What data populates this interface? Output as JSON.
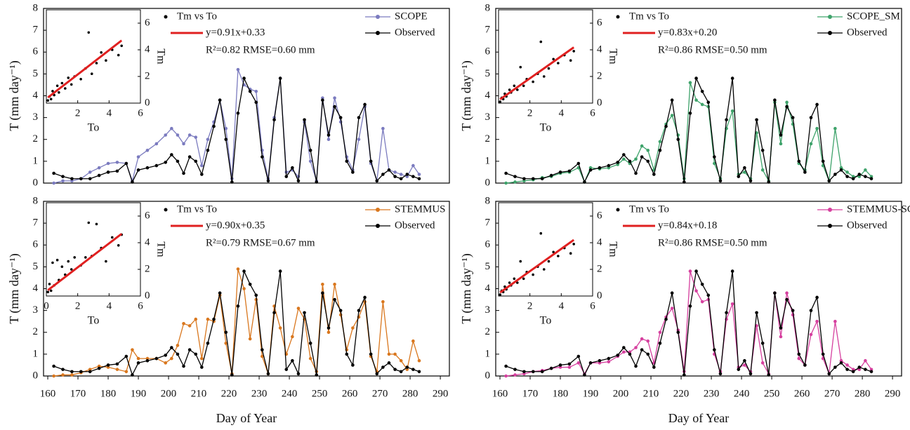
{
  "chart_data": [
    {
      "type": "line",
      "ylabel": "T (mm day⁻¹)",
      "xlim": [
        158.6,
        293
      ],
      "ylim": [
        0,
        8
      ],
      "yticks": [
        0,
        1,
        2,
        3,
        4,
        5,
        6,
        7,
        8
      ],
      "legend": "upper right",
      "x": [
        162,
        165,
        168,
        171,
        174,
        177,
        180,
        183,
        186,
        188,
        190,
        193,
        196,
        199,
        201,
        203,
        205,
        207,
        209,
        211,
        213,
        215,
        217,
        219,
        221,
        223,
        225,
        227,
        229,
        231,
        233,
        235,
        237,
        239,
        241,
        243,
        245,
        247,
        249,
        251,
        253,
        255,
        257,
        259,
        261,
        263,
        265,
        267,
        269,
        271,
        273,
        275,
        277,
        279,
        281,
        283
      ],
      "series": [
        {
          "name": "SCOPE",
          "color": "#7b7bbf",
          "values": [
            0,
            0.1,
            0.1,
            0.2,
            0.5,
            0.7,
            0.9,
            0.95,
            0.9,
            0.1,
            1.2,
            1.5,
            1.8,
            2.2,
            2.5,
            2.2,
            1.8,
            2.2,
            2.1,
            0.8,
            2.0,
            2.8,
            3.8,
            2.5,
            0.2,
            5.2,
            4.5,
            4.3,
            4.2,
            1.5,
            0.2,
            3.0,
            4.8,
            0.5,
            0.6,
            0.3,
            2.8,
            1.0,
            0.1,
            3.9,
            2.0,
            3.9,
            2.8,
            1.2,
            0.6,
            2.0,
            3.5,
            0.9,
            0.1,
            2.5,
            0.6,
            0.5,
            0.4,
            0.3,
            0.8,
            0.4
          ]
        },
        {
          "name": "Observed",
          "color": "#000000",
          "values": [
            0.45,
            0.3,
            0.2,
            0.2,
            0.2,
            0.35,
            0.5,
            0.55,
            0.9,
            0.05,
            0.6,
            0.7,
            0.8,
            0.95,
            1.3,
            1.0,
            0.45,
            1.2,
            1.0,
            0.4,
            1.5,
            2.6,
            3.8,
            2.0,
            0.05,
            3.2,
            4.8,
            4.2,
            3.7,
            1.2,
            0.1,
            2.9,
            4.8,
            0.3,
            0.7,
            0.1,
            2.9,
            1.5,
            0.05,
            3.8,
            2.2,
            3.5,
            3.0,
            1.0,
            0.5,
            3.0,
            3.6,
            1.0,
            0.1,
            0.4,
            0.6,
            0.3,
            0.2,
            0.4,
            0.3,
            0.2
          ]
        }
      ],
      "inset": {
        "type": "scatter",
        "xlabel": "To",
        "ylabel": "Tm",
        "xlim": [
          0,
          6
        ],
        "ylim": [
          0,
          7
        ],
        "xticks": [
          2,
          4,
          6
        ],
        "yticks": [
          0,
          2,
          4,
          6
        ],
        "series": [
          {
            "name": "Tm vs To",
            "color": "#000000",
            "x": [
              0.1,
              0.2,
              0.3,
              0.4,
              0.5,
              0.7,
              0.8,
              1.0,
              1.2,
              1.4,
              1.6,
              1.8,
              2.2,
              2.5,
              2.7,
              2.9,
              3.2,
              3.5,
              3.8,
              4.2,
              4.6,
              4.8
            ],
            "y": [
              0.2,
              0.5,
              0.3,
              0.9,
              0.6,
              1.3,
              0.8,
              1.5,
              1.1,
              1.9,
              1.4,
              2.0,
              1.8,
              2.6,
              5.3,
              2.2,
              3.0,
              3.8,
              3.2,
              4.0,
              3.6,
              4.3
            ]
          }
        ],
        "fit": {
          "label": "y=0.91x+0.33",
          "slope": 0.91,
          "intercept": 0.33,
          "color": "#e02020"
        },
        "stats": "R²=0.82 RMSE=0.60 mm"
      }
    },
    {
      "type": "line",
      "ylabel": "T (mm day⁻¹)",
      "xlim": [
        158.6,
        293
      ],
      "ylim": [
        0,
        8
      ],
      "yticks": [
        0,
        1,
        2,
        3,
        4,
        5,
        6,
        7,
        8
      ],
      "legend": "upper right",
      "x": [
        162,
        165,
        168,
        171,
        174,
        177,
        180,
        183,
        186,
        188,
        190,
        193,
        196,
        199,
        201,
        203,
        205,
        207,
        209,
        211,
        213,
        215,
        217,
        219,
        221,
        223,
        225,
        227,
        229,
        231,
        233,
        235,
        237,
        239,
        241,
        243,
        245,
        247,
        249,
        251,
        253,
        255,
        257,
        259,
        261,
        263,
        265,
        267,
        269,
        271,
        273,
        275,
        277,
        279,
        281,
        283
      ],
      "series": [
        {
          "name": "SCOPE_SM",
          "color": "#3fa36b",
          "values": [
            0,
            0.05,
            0.1,
            0.15,
            0.25,
            0.3,
            0.45,
            0.5,
            0.7,
            0.05,
            0.7,
            0.65,
            0.7,
            0.85,
            1.1,
            0.9,
            1.1,
            1.7,
            1.5,
            0.6,
            1.9,
            2.7,
            3.1,
            2.2,
            0.2,
            4.6,
            3.8,
            3.6,
            3.5,
            0.9,
            0.2,
            2.5,
            3.3,
            0.4,
            0.5,
            0.2,
            2.3,
            0.6,
            0.1,
            3.7,
            1.8,
            3.7,
            2.7,
            0.9,
            0.6,
            1.8,
            2.5,
            0.8,
            0.1,
            2.5,
            0.7,
            0.5,
            0.3,
            0.3,
            0.6,
            0.3
          ]
        },
        {
          "name": "Observed",
          "color": "#000000",
          "values": [
            0.45,
            0.3,
            0.2,
            0.2,
            0.2,
            0.35,
            0.5,
            0.55,
            0.9,
            0.05,
            0.6,
            0.7,
            0.8,
            0.95,
            1.3,
            1.0,
            0.45,
            1.2,
            1.0,
            0.4,
            1.5,
            2.6,
            3.8,
            2.0,
            0.05,
            3.2,
            4.8,
            4.2,
            3.7,
            1.2,
            0.1,
            2.9,
            4.8,
            0.3,
            0.7,
            0.1,
            2.9,
            1.5,
            0.05,
            3.8,
            2.2,
            3.5,
            3.0,
            1.0,
            0.5,
            3.0,
            3.6,
            1.0,
            0.1,
            0.4,
            0.6,
            0.3,
            0.2,
            0.4,
            0.3,
            0.2
          ]
        }
      ],
      "inset": {
        "type": "scatter",
        "xlabel": "To",
        "ylabel": "Tm",
        "xlim": [
          0,
          6
        ],
        "ylim": [
          0,
          7
        ],
        "xticks": [
          2,
          4,
          6
        ],
        "yticks": [
          0,
          2,
          4,
          6
        ],
        "series": [
          {
            "name": "Tm vs To",
            "color": "#000000",
            "x": [
              0.1,
              0.2,
              0.3,
              0.4,
              0.5,
              0.7,
              0.8,
              1.0,
              1.2,
              1.4,
              1.6,
              1.8,
              2.2,
              2.5,
              2.7,
              2.9,
              3.2,
              3.5,
              3.8,
              4.2,
              4.6,
              4.8
            ],
            "y": [
              0.1,
              0.4,
              0.3,
              0.7,
              0.5,
              1.0,
              0.8,
              1.3,
              1.0,
              2.7,
              1.3,
              1.8,
              1.6,
              2.2,
              4.6,
              2.0,
              2.6,
              3.3,
              3.0,
              3.6,
              3.2,
              3.9
            ]
          }
        ],
        "fit": {
          "label": "y=0.83x+0.20",
          "slope": 0.83,
          "intercept": 0.2,
          "color": "#e02020"
        },
        "stats": "R²=0.86 RMSE=0.50 mm"
      }
    },
    {
      "type": "line",
      "ylabel": "T (mm day⁻¹)",
      "xlabel": "Day of Year",
      "xlim": [
        158.6,
        293
      ],
      "ylim": [
        0,
        8
      ],
      "yticks": [
        0,
        1,
        2,
        3,
        4,
        5,
        6,
        7,
        8
      ],
      "xticks": [
        160,
        170,
        180,
        190,
        200,
        210,
        220,
        230,
        240,
        250,
        260,
        270,
        280,
        290
      ],
      "legend": "upper right",
      "x": [
        162,
        165,
        168,
        171,
        174,
        177,
        180,
        183,
        186,
        188,
        190,
        193,
        196,
        199,
        201,
        203,
        205,
        207,
        209,
        211,
        213,
        215,
        217,
        219,
        221,
        223,
        225,
        227,
        229,
        231,
        233,
        235,
        237,
        239,
        241,
        243,
        245,
        247,
        249,
        251,
        253,
        255,
        257,
        259,
        261,
        263,
        265,
        267,
        269,
        271,
        273,
        275,
        277,
        279,
        281,
        283
      ],
      "series": [
        {
          "name": "STEMMUS",
          "color": "#d9771e",
          "values": [
            0,
            0.05,
            0.05,
            0.15,
            0.3,
            0.45,
            0.4,
            0.3,
            0.2,
            1.2,
            0.8,
            0.8,
            0.8,
            0.6,
            0.8,
            1.4,
            2.4,
            2.3,
            2.6,
            0.8,
            2.6,
            2.5,
            3.7,
            1.5,
            0.1,
            4.9,
            4.0,
            1.7,
            3.5,
            0.9,
            0.1,
            3.2,
            2.2,
            1.0,
            1.8,
            3.1,
            2.6,
            0.8,
            0.2,
            4.2,
            2.0,
            4.2,
            2.8,
            1.2,
            2.2,
            2.7,
            3.4,
            0.9,
            0.2,
            3.4,
            1.0,
            1.0,
            0.7,
            0.3,
            1.6,
            0.7
          ]
        },
        {
          "name": "Observed",
          "color": "#000000",
          "values": [
            0.45,
            0.3,
            0.2,
            0.2,
            0.2,
            0.35,
            0.5,
            0.55,
            0.9,
            0.05,
            0.6,
            0.7,
            0.8,
            0.95,
            1.3,
            1.0,
            0.45,
            1.2,
            1.0,
            0.4,
            1.5,
            2.6,
            3.8,
            2.0,
            0.05,
            3.2,
            4.8,
            4.2,
            3.7,
            1.2,
            0.1,
            2.9,
            4.8,
            0.3,
            0.7,
            0.1,
            2.9,
            1.5,
            0.05,
            3.8,
            2.2,
            3.5,
            3.0,
            1.0,
            0.5,
            3.0,
            3.6,
            1.0,
            0.1,
            0.4,
            0.6,
            0.3,
            0.2,
            0.4,
            0.3,
            0.2
          ]
        }
      ],
      "inset": {
        "type": "scatter",
        "xlabel": "To",
        "ylabel": "Tm",
        "xlim": [
          0,
          6
        ],
        "ylim": [
          0,
          7
        ],
        "xticks": [
          0,
          2,
          4,
          6
        ],
        "yticks": [
          0,
          2,
          4,
          6
        ],
        "series": [
          {
            "name": "Tm vs To",
            "color": "#000000",
            "x": [
              0.1,
              0.2,
              0.3,
              0.4,
              0.5,
              0.7,
              0.8,
              1.0,
              1.2,
              1.4,
              1.6,
              1.8,
              2.2,
              2.5,
              2.7,
              2.9,
              3.2,
              3.5,
              3.8,
              4.2,
              4.6,
              4.8
            ],
            "y": [
              0.3,
              0.9,
              0.4,
              2.5,
              0.8,
              2.7,
              1.2,
              2.2,
              1.6,
              2.6,
              2.0,
              2.9,
              2.3,
              2.9,
              5.5,
              3.0,
              5.4,
              3.6,
              2.6,
              4.4,
              3.8,
              4.6
            ]
          }
        ],
        "fit": {
          "label": "y=0.90x+0.35",
          "slope": 0.9,
          "intercept": 0.35,
          "color": "#e02020"
        },
        "stats": "R²=0.79 RMSE=0.67 mm"
      }
    },
    {
      "type": "line",
      "ylabel": "T (mm day⁻¹)",
      "xlabel": "Day of Year",
      "xlim": [
        158.6,
        293
      ],
      "ylim": [
        0,
        8
      ],
      "yticks": [
        0,
        1,
        2,
        3,
        4,
        5,
        6,
        7,
        8
      ],
      "xticks": [
        160,
        170,
        180,
        190,
        200,
        210,
        220,
        230,
        240,
        250,
        260,
        270,
        280,
        290
      ],
      "legend": "upper right",
      "x": [
        162,
        165,
        168,
        171,
        174,
        177,
        180,
        183,
        186,
        188,
        190,
        193,
        196,
        199,
        201,
        203,
        205,
        207,
        209,
        211,
        213,
        215,
        217,
        219,
        221,
        223,
        225,
        227,
        229,
        231,
        233,
        235,
        237,
        239,
        241,
        243,
        245,
        247,
        249,
        251,
        253,
        255,
        257,
        259,
        261,
        263,
        265,
        267,
        269,
        271,
        273,
        275,
        277,
        279,
        281,
        283
      ],
      "series": [
        {
          "name": "STEMMUS-SCOPE",
          "color": "#d6409f",
          "values": [
            0,
            0.05,
            0.1,
            0.2,
            0.25,
            0.35,
            0.4,
            0.4,
            0.6,
            0.1,
            0.6,
            0.6,
            0.65,
            0.9,
            1.1,
            1.1,
            1.3,
            1.7,
            1.6,
            0.6,
            2.0,
            2.7,
            3.1,
            2.1,
            0.2,
            4.8,
            3.9,
            3.4,
            3.5,
            1.0,
            0.2,
            2.6,
            3.3,
            0.4,
            0.5,
            0.2,
            2.3,
            0.6,
            0.1,
            3.8,
            1.8,
            3.8,
            2.8,
            0.8,
            0.5,
            1.9,
            2.5,
            0.8,
            0.1,
            2.5,
            0.7,
            0.5,
            0.3,
            0.3,
            0.7,
            0.3
          ]
        },
        {
          "name": "Observed",
          "color": "#000000",
          "values": [
            0.45,
            0.3,
            0.2,
            0.2,
            0.2,
            0.35,
            0.5,
            0.55,
            0.9,
            0.05,
            0.6,
            0.7,
            0.8,
            0.95,
            1.3,
            1.0,
            0.45,
            1.2,
            1.0,
            0.4,
            1.5,
            2.6,
            3.8,
            2.0,
            0.05,
            3.2,
            4.8,
            4.2,
            3.7,
            1.2,
            0.1,
            2.9,
            4.8,
            0.3,
            0.7,
            0.1,
            2.9,
            1.5,
            0.05,
            3.8,
            2.2,
            3.5,
            3.0,
            1.0,
            0.5,
            3.0,
            3.6,
            1.0,
            0.1,
            0.4,
            0.6,
            0.3,
            0.2,
            0.4,
            0.3,
            0.2
          ]
        }
      ],
      "inset": {
        "type": "scatter",
        "xlabel": "To",
        "ylabel": "Tm",
        "xlim": [
          0,
          6
        ],
        "ylim": [
          0,
          7
        ],
        "xticks": [
          2,
          4,
          6
        ],
        "yticks": [
          0,
          2,
          4,
          6
        ],
        "series": [
          {
            "name": "Tm vs To",
            "color": "#000000",
            "x": [
              0.1,
              0.2,
              0.3,
              0.4,
              0.5,
              0.7,
              0.8,
              1.0,
              1.2,
              1.4,
              1.6,
              1.8,
              2.2,
              2.5,
              2.7,
              2.9,
              3.2,
              3.5,
              3.8,
              4.2,
              4.6,
              4.8
            ],
            "y": [
              0.1,
              0.4,
              0.3,
              0.7,
              0.5,
              1.0,
              0.8,
              1.3,
              1.0,
              2.6,
              1.3,
              1.8,
              1.6,
              2.2,
              4.7,
              2.0,
              2.6,
              3.3,
              3.0,
              3.6,
              3.2,
              3.9
            ]
          }
        ],
        "fit": {
          "label": "y=0.84x+0.18",
          "slope": 0.84,
          "intercept": 0.18,
          "color": "#e02020"
        },
        "stats": "R²=0.86 RMSE=0.50 mm"
      }
    }
  ]
}
